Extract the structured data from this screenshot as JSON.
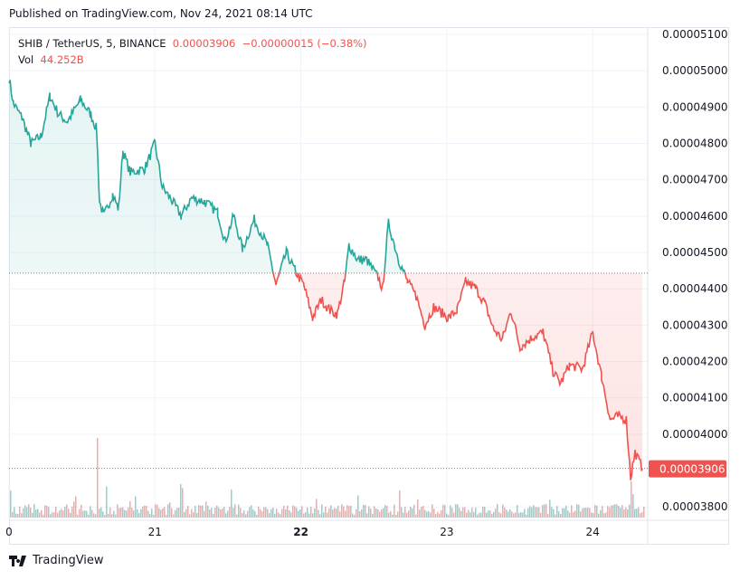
{
  "header": {
    "published": "Published on TradingView.com, Nov 24, 2021 08:14 UTC"
  },
  "legend": {
    "symbol": "SHIB / TetherUS, 5, BINANCE",
    "price": "0.00003906",
    "change": "−0.00000015 (−0.38%)",
    "vol_label": "Vol",
    "vol_value": "44.252B"
  },
  "brand": {
    "name": "TradingView"
  },
  "colors": {
    "up": "#26a69a",
    "down": "#ef5350",
    "grid": "#f0f3fa"
  },
  "chart_data": {
    "type": "line",
    "title": "SHIB / TetherUS, 5, BINANCE",
    "baseline": 4.443e-05,
    "last_price": 3.906e-05,
    "last_price_label": "0.00003906",
    "ylim": [
      3.78e-05,
      5.12e-05
    ],
    "y_ticks": [
      "0.00005100",
      "0.00005000",
      "0.00004900",
      "0.00004800",
      "0.00004700",
      "0.00004600",
      "0.00004500",
      "0.00004400",
      "0.00004300",
      "0.00004200",
      "0.00004100",
      "0.00004000",
      "0.00003800"
    ],
    "y_tick_values": [
      5100,
      5000,
      4900,
      4800,
      4700,
      4600,
      4500,
      4400,
      4300,
      4200,
      4100,
      4000,
      3800
    ],
    "x_ticks": [
      {
        "label": "0",
        "day": 20
      },
      {
        "label": "21",
        "day": 21
      },
      {
        "label": "22",
        "day": 22
      },
      {
        "label": "23",
        "day": 23
      },
      {
        "label": "24",
        "day": 24
      }
    ],
    "x_range_days": [
      20,
      24.35
    ],
    "series_day": [
      20,
      20.03,
      20.09,
      20.15,
      20.22,
      20.28,
      20.34,
      20.4,
      20.49,
      20.56,
      20.6,
      20.62,
      20.65,
      20.71,
      20.75,
      20.78,
      20.83,
      20.93,
      21,
      21.05,
      21.12,
      21.18,
      21.25,
      21.34,
      21.43,
      21.48,
      21.54,
      21.6,
      21.68,
      21.77,
      21.83,
      21.9,
      21.96,
      22.02,
      22.08,
      22.14,
      22.2,
      22.25,
      22.3,
      22.33,
      22.39,
      22.45,
      22.53,
      22.56,
      22.6,
      22.67,
      22.73,
      22.79,
      22.85,
      22.91,
      23.01,
      23.07,
      23.13,
      23.2,
      23.26,
      23.32,
      23.38,
      23.44,
      23.5,
      23.6,
      23.66,
      23.73,
      23.78,
      23.84,
      23.93,
      24,
      24.06,
      24.12,
      24.18,
      24.23,
      24.26,
      24.29,
      24.34
    ],
    "series_price_e8": [
      4980,
      4910,
      4870,
      4800,
      4820,
      4930,
      4880,
      4860,
      4920,
      4880,
      4840,
      4640,
      4600,
      4660,
      4620,
      4780,
      4720,
      4730,
      4800,
      4680,
      4640,
      4600,
      4650,
      4640,
      4610,
      4530,
      4600,
      4510,
      4590,
      4520,
      4410,
      4500,
      4450,
      4410,
      4320,
      4370,
      4340,
      4330,
      4420,
      4520,
      4480,
      4480,
      4430,
      4400,
      4580,
      4480,
      4420,
      4380,
      4300,
      4350,
      4320,
      4340,
      4420,
      4400,
      4360,
      4290,
      4260,
      4340,
      4240,
      4270,
      4280,
      4170,
      4140,
      4190,
      4180,
      4280,
      4160,
      4040,
      4050,
      4040,
      3880,
      3950,
      3906
    ]
  }
}
